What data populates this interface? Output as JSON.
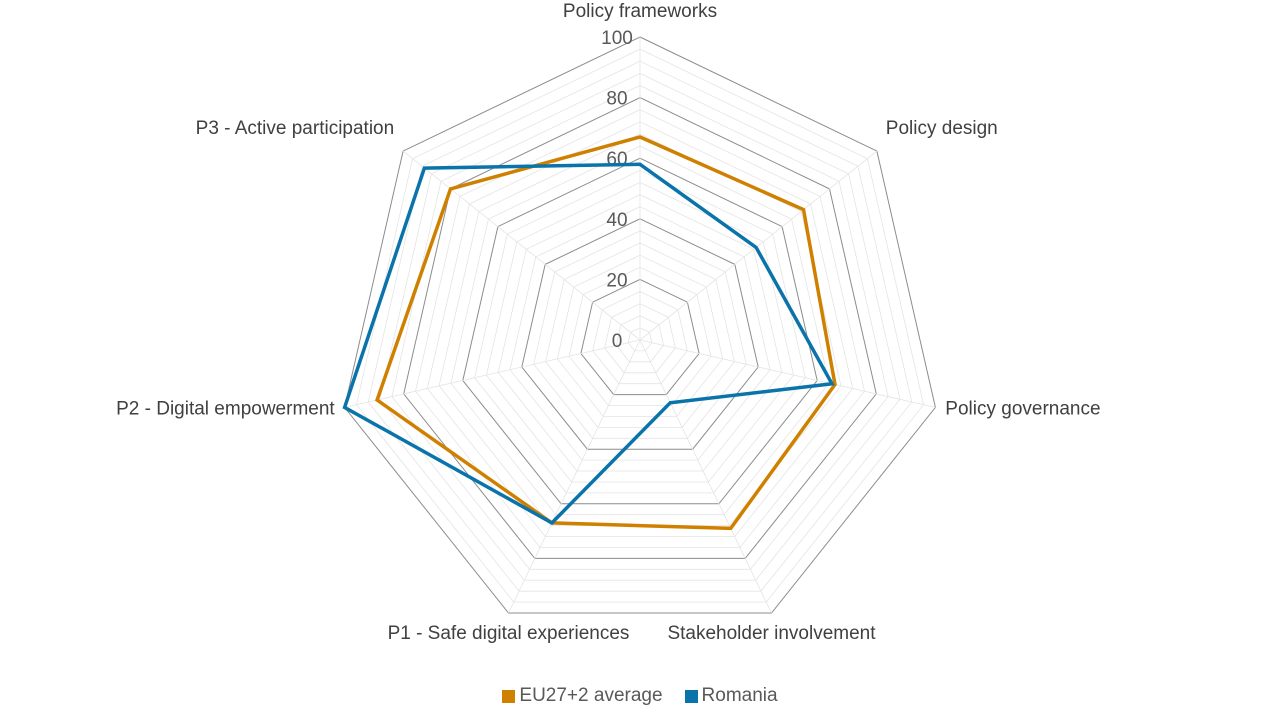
{
  "chart_data": {
    "type": "radar",
    "categories": [
      "Policy frameworks",
      "Policy design",
      "Policy governance",
      "Stakeholder involvement",
      "P1 - Safe digital experiences",
      "P2 - Digital empowerment",
      "P3 - Active participation"
    ],
    "series": [
      {
        "name": "EU27+2 average",
        "color": "#d08000",
        "values": [
          67,
          69,
          66,
          69,
          67,
          89,
          80
        ]
      },
      {
        "name": "Romania",
        "color": "#0a74aa",
        "values": [
          58,
          49,
          65,
          23,
          67,
          100,
          91
        ]
      }
    ],
    "rlim": [
      0,
      100
    ],
    "ticks": [
      "0",
      "20",
      "40",
      "60",
      "80",
      "100"
    ],
    "minor_gridlines_per_major": 4,
    "legend": "bottom"
  }
}
